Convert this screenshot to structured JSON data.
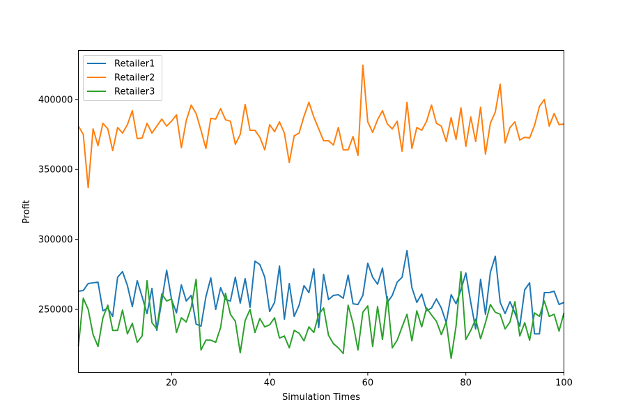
{
  "chart_data": {
    "type": "line",
    "title": "",
    "xlabel": "Simulation Times",
    "ylabel": "Profit",
    "xlim": [
      1,
      100
    ],
    "ylim": [
      205000,
      435000
    ],
    "xticks": [
      20,
      40,
      60,
      80,
      100
    ],
    "yticks": [
      250000,
      300000,
      350000,
      400000
    ],
    "grid": false,
    "legend_position": "top-left",
    "x": [
      1,
      2,
      3,
      4,
      5,
      6,
      7,
      8,
      9,
      10,
      11,
      12,
      13,
      14,
      15,
      16,
      17,
      18,
      19,
      20,
      21,
      22,
      23,
      24,
      25,
      26,
      27,
      28,
      29,
      30,
      31,
      32,
      33,
      34,
      35,
      36,
      37,
      38,
      39,
      40,
      41,
      42,
      43,
      44,
      45,
      46,
      47,
      48,
      49,
      50,
      51,
      52,
      53,
      54,
      55,
      56,
      57,
      58,
      59,
      60,
      61,
      62,
      63,
      64,
      65,
      66,
      67,
      68,
      69,
      70,
      71,
      72,
      73,
      74,
      75,
      76,
      77,
      78,
      79,
      80,
      81,
      82,
      83,
      84,
      85,
      86,
      87,
      88,
      89,
      90,
      91,
      92,
      93,
      94,
      95,
      96,
      97,
      98,
      99,
      100
    ],
    "series": [
      {
        "name": "Retailer1",
        "color": "#1f77b4",
        "values": [
          263000,
          263500,
          268500,
          269000,
          269500,
          249000,
          251000,
          245000,
          273000,
          277000,
          267000,
          252000,
          270500,
          259000,
          247000,
          265000,
          235000,
          256000,
          278000,
          257000,
          247500,
          267500,
          256000,
          260000,
          239500,
          238000,
          259000,
          272500,
          250000,
          265500,
          257000,
          256000,
          273000,
          254500,
          272000,
          251500,
          284500,
          282000,
          273000,
          248500,
          255000,
          281000,
          243000,
          268500,
          245000,
          253000,
          267000,
          262000,
          279000,
          237000,
          275000,
          257000,
          260000,
          260500,
          258000,
          274500,
          254000,
          253500,
          260000,
          283000,
          273000,
          268000,
          279500,
          255000,
          260000,
          269500,
          273000,
          292000,
          265500,
          255000,
          261000,
          249000,
          251000,
          257500,
          251000,
          240500,
          260500,
          254000,
          264000,
          276000,
          255000,
          236000,
          271500,
          246500,
          276500,
          288000,
          255000,
          247000,
          255500,
          247500,
          238000,
          264000,
          269000,
          232500,
          232500,
          262000,
          262000,
          263000,
          253500,
          255000
        ]
      },
      {
        "name": "Retailer2",
        "color": "#ff7f0e",
        "values": [
          381000,
          375000,
          337000,
          379000,
          367000,
          383000,
          379000,
          363500,
          380000,
          376000,
          382000,
          392000,
          372000,
          372500,
          383000,
          376000,
          381000,
          386000,
          381000,
          384500,
          389000,
          365500,
          385000,
          396000,
          390000,
          378000,
          365000,
          386500,
          386000,
          393500,
          385500,
          384500,
          368000,
          375000,
          396500,
          378000,
          378000,
          373000,
          364000,
          382000,
          377000,
          384000,
          376000,
          355000,
          374000,
          376000,
          388000,
          398000,
          387500,
          379000,
          370500,
          370500,
          367500,
          380000,
          364000,
          364000,
          373500,
          360000,
          424500,
          384000,
          376500,
          385500,
          392000,
          382500,
          379000,
          384500,
          363000,
          398000,
          365000,
          380000,
          378000,
          384500,
          396000,
          383000,
          381000,
          370000,
          387000,
          371500,
          394000,
          366500,
          387500,
          370000,
          394500,
          361000,
          383000,
          391000,
          411000,
          369000,
          380000,
          384000,
          371000,
          373000,
          372500,
          381500,
          395000,
          400000,
          381000,
          390000,
          382000,
          382500
        ]
      },
      {
        "name": "Retailer3",
        "color": "#2ca02c",
        "values": [
          223500,
          258000,
          250000,
          232000,
          223500,
          244000,
          253000,
          235000,
          235000,
          249500,
          232500,
          240000,
          226500,
          231000,
          270500,
          240500,
          236000,
          261000,
          256000,
          257500,
          233500,
          244000,
          241000,
          251500,
          271500,
          221000,
          228000,
          228000,
          226500,
          237000,
          261500,
          246500,
          241500,
          219000,
          242000,
          250000,
          233500,
          243500,
          237500,
          239000,
          244000,
          229500,
          231000,
          222500,
          235000,
          233000,
          227500,
          237500,
          233500,
          246500,
          251000,
          231500,
          225500,
          222500,
          218500,
          253000,
          240000,
          221000,
          248000,
          252500,
          223500,
          252000,
          228500,
          259000,
          222500,
          228000,
          237500,
          246500,
          227500,
          249000,
          237500,
          251000,
          246000,
          241500,
          232000,
          241000,
          215000,
          238000,
          277000,
          228500,
          235000,
          243000,
          229000,
          240500,
          253500,
          248000,
          246500,
          236000,
          241000,
          255500,
          231000,
          240500,
          228000,
          247500,
          245000,
          256000,
          245000,
          246500,
          234500,
          247500
        ]
      }
    ]
  }
}
